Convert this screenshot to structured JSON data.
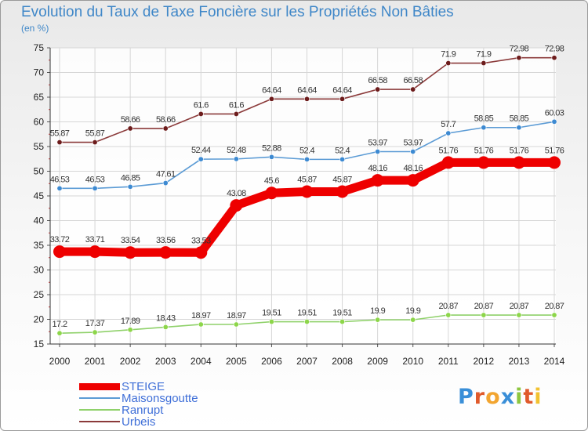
{
  "title": "Evolution du Taux de Taxe Foncière sur les Propriétés Non Bâties",
  "subtitle": "(en %)",
  "logo": {
    "text": "Proxiti",
    "colors": [
      "#3a8fd8",
      "#e05a2b",
      "#f2a530",
      "#3a8fd8",
      "#8dc63f",
      "#e05a2b",
      "#f2c230"
    ]
  },
  "chart_data": {
    "type": "line",
    "x": [
      "2000",
      "2001",
      "2002",
      "2003",
      "2004",
      "2005",
      "2006",
      "2007",
      "2008",
      "2009",
      "2010",
      "2011",
      "2012",
      "2013",
      "2014"
    ],
    "ylim": [
      15,
      75
    ],
    "yticks": [
      "15",
      "20",
      "25",
      "30",
      "35",
      "40",
      "45",
      "50",
      "55",
      "60",
      "65",
      "70",
      "75"
    ],
    "grid": true,
    "legend_position": "bottom-left",
    "series": [
      {
        "name": "STEIGE",
        "color": "#ee0000",
        "emphasis": true,
        "values": [
          33.72,
          33.71,
          33.54,
          33.56,
          33.53,
          43.08,
          45.6,
          45.87,
          45.87,
          48.16,
          48.16,
          51.76,
          51.76,
          51.76,
          51.76
        ],
        "labels": [
          "33.72",
          "33.71",
          "33.54",
          "33.56",
          "33.53",
          "43.08",
          "45.6",
          "45.87",
          "45.87",
          "48.16",
          "48.16",
          "51.76",
          "51.76",
          "51.76",
          "51.76"
        ]
      },
      {
        "name": "Maisonsgoutte",
        "color": "#5b9bd5",
        "marker": "#3d8ad2",
        "values": [
          46.53,
          46.53,
          46.85,
          47.61,
          52.44,
          52.48,
          52.88,
          52.4,
          52.4,
          53.97,
          53.97,
          57.7,
          58.85,
          58.85,
          60.03
        ],
        "labels": [
          "46.53",
          "46.53",
          "46.85",
          "47.61",
          "52.44",
          "52.48",
          "52.88",
          "52.4",
          "52.4",
          "53.97",
          "53.97",
          "57.7",
          "58.85",
          "58.85",
          "60.03"
        ]
      },
      {
        "name": "Ranrupt",
        "color": "#8fd16a",
        "marker": "#8dd64a",
        "values": [
          17.2,
          17.37,
          17.89,
          18.43,
          18.97,
          18.97,
          19.51,
          19.51,
          19.51,
          19.9,
          19.9,
          20.87,
          20.87,
          20.87,
          20.87
        ],
        "labels": [
          "17.2",
          "17.37",
          "17.89",
          "18.43",
          "18.97",
          "18.97",
          "19.51",
          "19.51",
          "19.51",
          "19.9",
          "19.9",
          "20.87",
          "20.87",
          "20.87",
          "20.87"
        ]
      },
      {
        "name": "Urbeis",
        "color": "#8b3a3a",
        "marker": "#6d1c1c",
        "values": [
          55.87,
          55.87,
          58.66,
          58.66,
          61.6,
          61.6,
          64.64,
          64.64,
          64.64,
          66.58,
          66.58,
          71.9,
          71.9,
          72.98,
          72.98
        ],
        "labels": [
          "55.87",
          "55.87",
          "58.66",
          "58.66",
          "61.6",
          "61.6",
          "64.64",
          "64.64",
          "64.64",
          "66.58",
          "66.58",
          "71.9",
          "71.9",
          "72.98",
          "72.98"
        ]
      }
    ]
  }
}
